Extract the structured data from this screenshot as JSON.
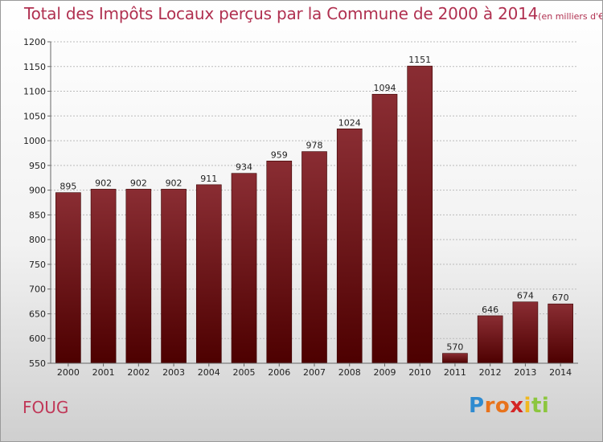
{
  "title": "Total des Impôts Locaux perçus par la Commune de 2000 à 2014",
  "title_unit": "(en milliers d'€)",
  "commune": "FOUG",
  "logo": {
    "letters": [
      "P",
      "r",
      "o",
      "x",
      "i",
      "t",
      "i"
    ],
    "colors": [
      "#2f8bd0",
      "#e8731c",
      "#e8731c",
      "#d42525",
      "#f0b820",
      "#8cc63e",
      "#8cc63e"
    ]
  },
  "colors": {
    "bar_top": "#8a2d33",
    "bar_bottom": "#4d0000",
    "grid": "#bbbbbb",
    "axis": "#666666"
  },
  "chart_data": {
    "type": "bar",
    "title": "Total des Impôts Locaux perçus par la Commune de 2000 à 2014 (en milliers d'€)",
    "xlabel": "",
    "ylabel": "",
    "categories": [
      "2000",
      "2001",
      "2002",
      "2003",
      "2004",
      "2005",
      "2006",
      "2007",
      "2008",
      "2009",
      "2010",
      "2011",
      "2012",
      "2013",
      "2014"
    ],
    "values": [
      895,
      902,
      902,
      902,
      911,
      934,
      959,
      978,
      1024,
      1094,
      1151,
      570,
      646,
      674,
      670
    ],
    "ylim": [
      550,
      1200
    ],
    "yticks": [
      550,
      600,
      650,
      700,
      750,
      800,
      850,
      900,
      950,
      1000,
      1050,
      1100,
      1150,
      1200
    ],
    "grid": true
  }
}
